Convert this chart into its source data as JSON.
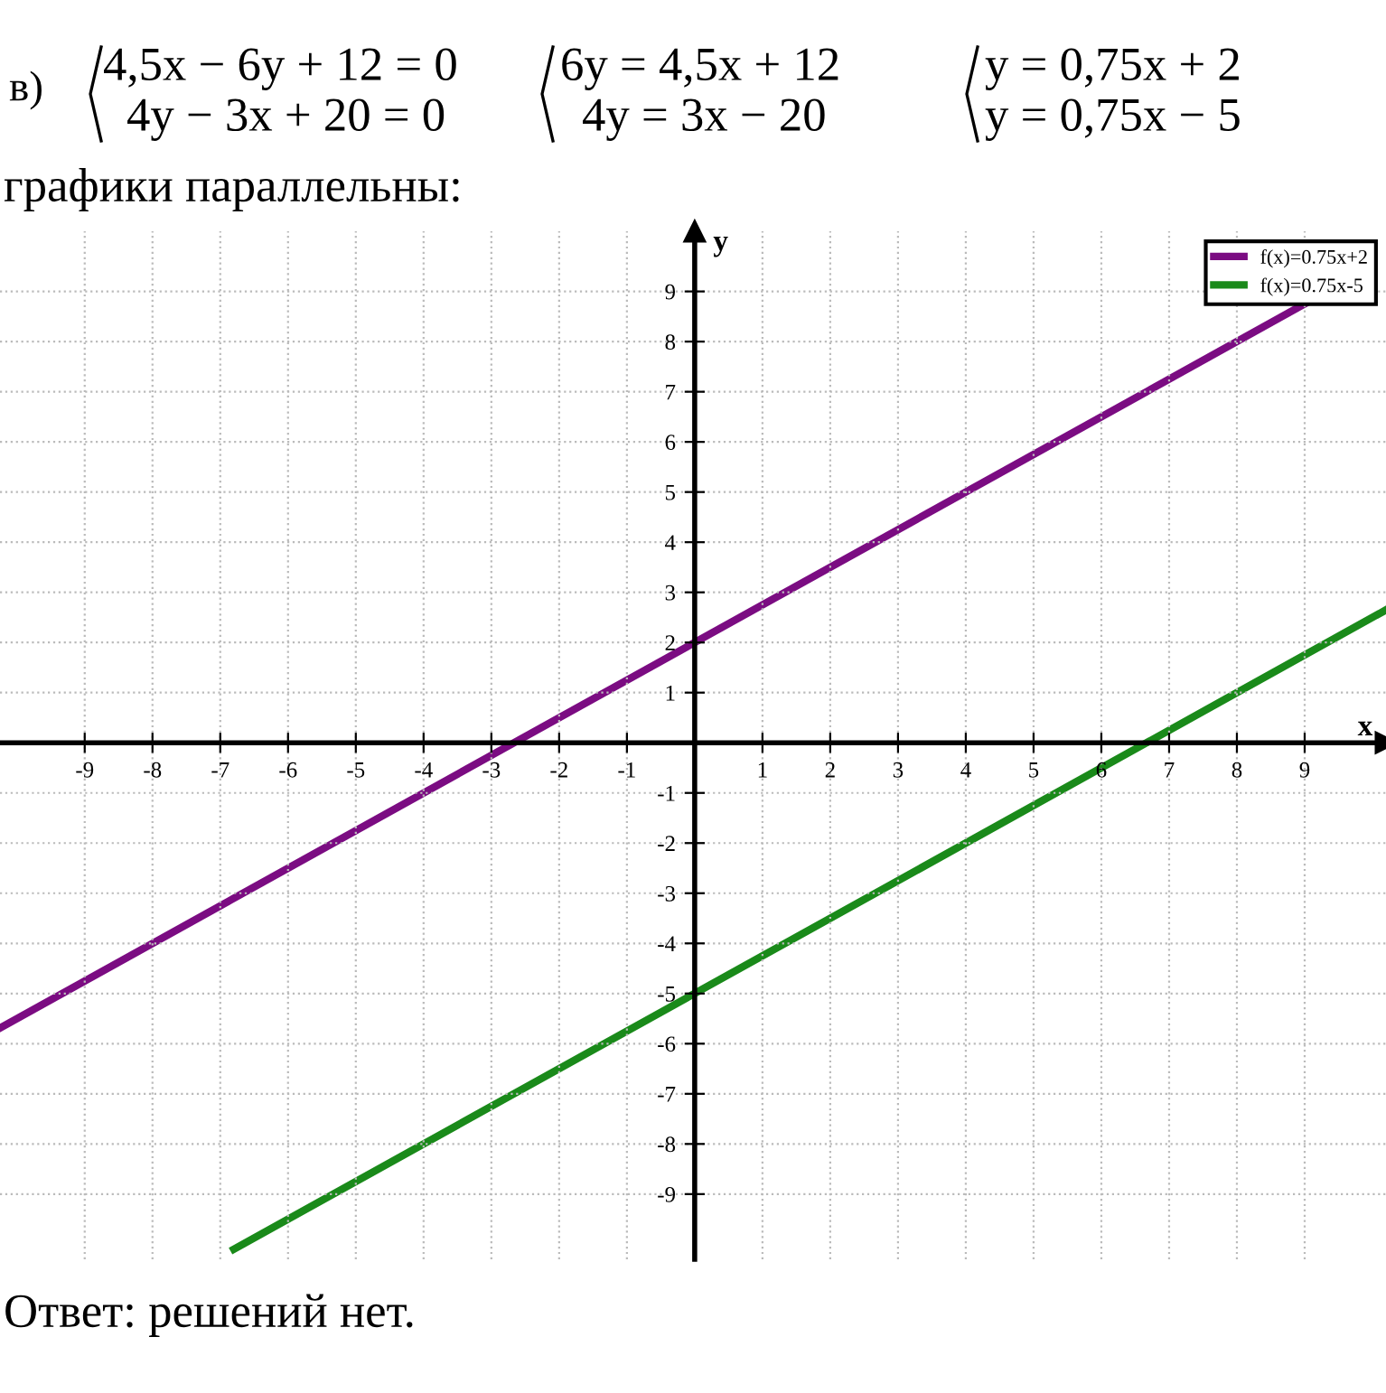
{
  "chart_data": {
    "type": "line",
    "series": [
      {
        "name": "f(x)=0.75x+2",
        "color": "#7b0c82",
        "x": [
          -10.25,
          9.0
        ],
        "values": [
          -5.69,
          8.75
        ]
      },
      {
        "name": "f(x)=0.75x-5",
        "color": "#1a8a1a",
        "x": [
          -6.8,
          10.2
        ],
        "values": [
          -10.1,
          2.65
        ]
      }
    ],
    "xlabel": "x",
    "ylabel": "y",
    "xlim": [
      -10.25,
      10.2
    ],
    "ylim": [
      -10.3,
      10.2
    ],
    "xticks": [
      -9,
      -8,
      -7,
      -6,
      -5,
      -4,
      -3,
      -2,
      -1,
      1,
      2,
      3,
      4,
      5,
      6,
      7,
      8,
      9
    ],
    "yticks": [
      -9,
      -8,
      -7,
      -6,
      -5,
      -4,
      -3,
      -2,
      -1,
      1,
      2,
      3,
      4,
      5,
      6,
      7,
      8,
      9
    ],
    "grid": true,
    "legend": "top right",
    "marker": "none",
    "line_style": "solid",
    "annotations": [
      "в)",
      "4,5x − 6y + 12 = 0",
      "4y − 3x + 20 = 0",
      "6y = 4,5x + 12",
      "4y = 3x − 20",
      "y = 0,75x + 2",
      "y = 0,75x − 5",
      "графики параллельны:",
      "Ответ: решений нет."
    ]
  }
}
